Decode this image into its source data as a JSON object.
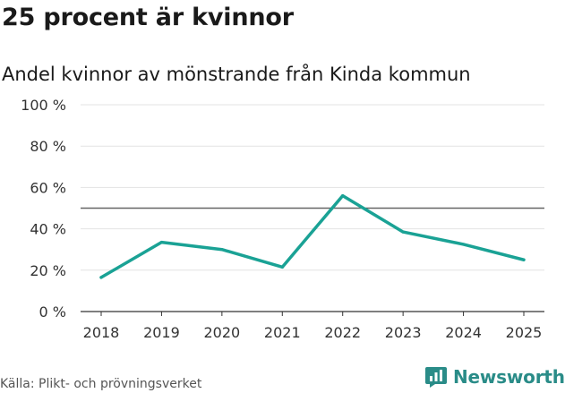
{
  "title": "25 procent är kvinnor",
  "subtitle": "Andel kvinnor av mönstrande från Kinda kommun",
  "source": "Källa: Plikt- och prövningsverket",
  "logo": {
    "text": "Newsworthy",
    "icon": "bar-chart-icon",
    "color": "#2a8c88"
  },
  "chart_data": {
    "type": "line",
    "title": "Andel kvinnor av mönstrande från Kinda kommun",
    "xlabel": "",
    "ylabel": "",
    "categories": [
      "2018",
      "2019",
      "2020",
      "2021",
      "2022",
      "2023",
      "2024",
      "2025"
    ],
    "series": [
      {
        "name": "Andel kvinnor",
        "values": [
          16.5,
          33.5,
          30,
          21.5,
          56,
          38.5,
          32.5,
          25
        ],
        "color": "#1aa295"
      }
    ],
    "ylim": [
      0,
      100
    ],
    "yticks": [
      0,
      20,
      40,
      60,
      80,
      100
    ],
    "ytick_labels": [
      "0 %",
      "20 %",
      "40 %",
      "60 %",
      "80 %",
      "100 %"
    ],
    "reference_line": 50,
    "grid": true
  }
}
